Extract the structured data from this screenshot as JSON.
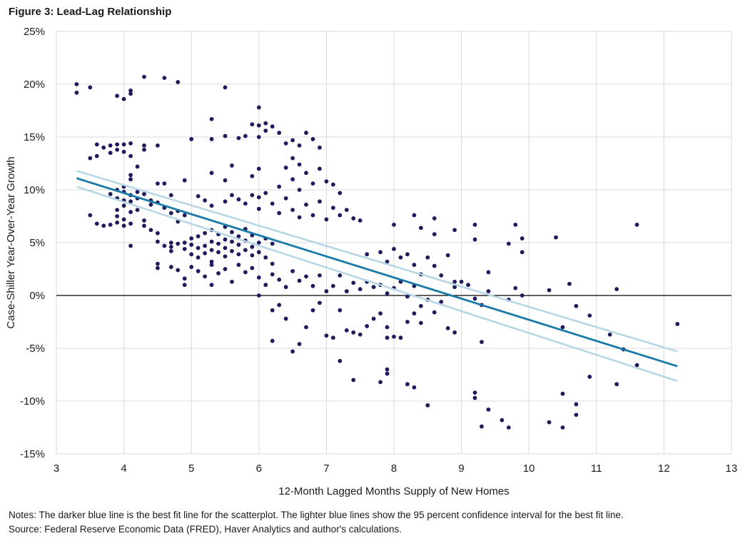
{
  "title": "Figure 3: Lead-Lag Relationship",
  "notes": {
    "line1": "Notes: The darker blue line is the best fit line for the scatterplot. The lighter blue lines show the 95 percent confidence interval for the best fit line.",
    "line2": "Source: Federal Reserve Economic Data (FRED), Haver Analytics and author's calculations."
  },
  "chart_data": {
    "type": "scatter",
    "title": "Figure 3: Lead-Lag Relationship",
    "xlabel": "12-Month Lagged Months Supply of New Homes",
    "ylabel": "Case-Shiller Year-Over-Year Growth",
    "xlim": [
      3,
      13
    ],
    "ylim": [
      -15,
      25
    ],
    "x_ticks": [
      3,
      4,
      5,
      6,
      7,
      8,
      9,
      10,
      11,
      12,
      13
    ],
    "y_ticks": [
      -15,
      -10,
      -5,
      0,
      5,
      10,
      15,
      20,
      25
    ],
    "y_tick_labels": [
      "-15%",
      "-10%",
      "-5%",
      "0%",
      "5%",
      "10%",
      "15%",
      "20%",
      "25%"
    ],
    "grid": true,
    "colors": {
      "points": "#1f1a5c",
      "fit": "#1a7aa8",
      "ci": "#b7d7e6",
      "grid": "#d9d9d9",
      "zero": "#000000"
    },
    "fit_line": {
      "x": [
        3.3,
        12.2
      ],
      "y": [
        11.1,
        -6.7
      ]
    },
    "ci_upper": {
      "x": [
        3.3,
        12.2
      ],
      "y": [
        11.8,
        -5.3
      ]
    },
    "ci_lower": {
      "x": [
        3.3,
        12.2
      ],
      "y": [
        10.3,
        -8.1
      ]
    },
    "points": [
      [
        3.3,
        20.0
      ],
      [
        3.3,
        19.2
      ],
      [
        3.5,
        19.7
      ],
      [
        4.3,
        20.7
      ],
      [
        4.6,
        20.6
      ],
      [
        4.8,
        20.2
      ],
      [
        5.5,
        19.7
      ],
      [
        3.9,
        18.9
      ],
      [
        4.0,
        18.6
      ],
      [
        4.1,
        19.1
      ],
      [
        4.1,
        19.4
      ],
      [
        3.5,
        13.0
      ],
      [
        3.6,
        13.2
      ],
      [
        3.6,
        14.3
      ],
      [
        3.7,
        14.0
      ],
      [
        3.8,
        13.5
      ],
      [
        3.8,
        14.2
      ],
      [
        3.9,
        14.3
      ],
      [
        3.9,
        13.8
      ],
      [
        4.0,
        14.3
      ],
      [
        4.0,
        13.6
      ],
      [
        4.1,
        14.4
      ],
      [
        4.1,
        13.2
      ],
      [
        4.3,
        14.2
      ],
      [
        4.3,
        13.8
      ],
      [
        4.5,
        14.2
      ],
      [
        4.2,
        12.2
      ],
      [
        4.1,
        11.4
      ],
      [
        4.1,
        11.0
      ],
      [
        4.0,
        10.3
      ],
      [
        3.9,
        10.0
      ],
      [
        4.5,
        10.6
      ],
      [
        4.6,
        10.6
      ],
      [
        4.7,
        9.5
      ],
      [
        4.9,
        10.9
      ],
      [
        3.5,
        7.6
      ],
      [
        3.6,
        6.8
      ],
      [
        3.7,
        6.6
      ],
      [
        3.8,
        6.7
      ],
      [
        3.9,
        6.9
      ],
      [
        3.9,
        7.5
      ],
      [
        3.9,
        8.1
      ],
      [
        4.0,
        8.5
      ],
      [
        4.0,
        7.2
      ],
      [
        4.0,
        6.6
      ],
      [
        4.1,
        6.8
      ],
      [
        4.1,
        7.9
      ],
      [
        4.1,
        8.9
      ],
      [
        4.2,
        9.2
      ],
      [
        4.2,
        8.1
      ],
      [
        4.3,
        7.1
      ],
      [
        4.3,
        6.6
      ],
      [
        4.4,
        6.2
      ],
      [
        4.5,
        5.9
      ],
      [
        4.5,
        5.1
      ],
      [
        4.6,
        4.7
      ],
      [
        4.1,
        4.7
      ],
      [
        4.5,
        3.0
      ],
      [
        4.5,
        2.6
      ],
      [
        3.8,
        9.6
      ],
      [
        3.9,
        9.2
      ],
      [
        4.0,
        9.0
      ],
      [
        4.0,
        9.8
      ],
      [
        4.1,
        9.5
      ],
      [
        4.2,
        9.8
      ],
      [
        4.3,
        9.6
      ],
      [
        4.4,
        9.0
      ],
      [
        4.4,
        8.6
      ],
      [
        4.5,
        8.8
      ],
      [
        4.6,
        8.3
      ],
      [
        4.7,
        7.8
      ],
      [
        4.8,
        8.0
      ],
      [
        4.9,
        7.6
      ],
      [
        4.8,
        7.0
      ],
      [
        4.7,
        5.0
      ],
      [
        4.7,
        4.6
      ],
      [
        4.7,
        4.2
      ],
      [
        4.8,
        4.9
      ],
      [
        4.9,
        5.0
      ],
      [
        4.9,
        4.4
      ],
      [
        5.0,
        5.4
      ],
      [
        5.0,
        4.8
      ],
      [
        5.0,
        3.9
      ],
      [
        5.1,
        5.6
      ],
      [
        5.1,
        4.5
      ],
      [
        5.1,
        3.6
      ],
      [
        5.2,
        5.9
      ],
      [
        5.2,
        4.7
      ],
      [
        5.2,
        4.0
      ],
      [
        5.3,
        6.2
      ],
      [
        5.3,
        5.1
      ],
      [
        5.3,
        4.3
      ],
      [
        5.3,
        3.2
      ],
      [
        5.4,
        5.8
      ],
      [
        5.4,
        4.9
      ],
      [
        5.4,
        4.1
      ],
      [
        5.5,
        6.5
      ],
      [
        5.5,
        5.3
      ],
      [
        5.5,
        4.5
      ],
      [
        5.5,
        3.7
      ],
      [
        5.6,
        6.0
      ],
      [
        5.6,
        5.1
      ],
      [
        5.6,
        4.2
      ],
      [
        5.7,
        5.6
      ],
      [
        5.7,
        4.8
      ],
      [
        5.7,
        3.9
      ],
      [
        5.8,
        6.3
      ],
      [
        5.8,
        5.2
      ],
      [
        5.8,
        4.3
      ],
      [
        5.9,
        5.7
      ],
      [
        5.9,
        4.6
      ],
      [
        5.9,
        3.8
      ],
      [
        6.0,
        5.0
      ],
      [
        6.0,
        4.1
      ],
      [
        6.1,
        5.4
      ],
      [
        6.1,
        3.6
      ],
      [
        6.2,
        4.9
      ],
      [
        6.2,
        3.0
      ],
      [
        4.7,
        2.7
      ],
      [
        4.8,
        2.4
      ],
      [
        4.9,
        1.0
      ],
      [
        4.9,
        1.6
      ],
      [
        5.0,
        2.7
      ],
      [
        5.1,
        2.3
      ],
      [
        5.2,
        1.8
      ],
      [
        5.3,
        1.0
      ],
      [
        5.3,
        2.9
      ],
      [
        5.4,
        2.1
      ],
      [
        5.5,
        2.5
      ],
      [
        5.6,
        1.3
      ],
      [
        5.7,
        2.9
      ],
      [
        5.8,
        2.2
      ],
      [
        5.9,
        2.6
      ],
      [
        6.0,
        1.7
      ],
      [
        6.1,
        1.0
      ],
      [
        6.2,
        2.0
      ],
      [
        6.3,
        1.5
      ],
      [
        6.4,
        0.8
      ],
      [
        6.5,
        2.3
      ],
      [
        6.6,
        1.4
      ],
      [
        6.7,
        1.8
      ],
      [
        6.8,
        0.9
      ],
      [
        6.9,
        1.9
      ],
      [
        5.1,
        9.4
      ],
      [
        5.2,
        9.0
      ],
      [
        5.3,
        8.5
      ],
      [
        5.5,
        8.9
      ],
      [
        5.6,
        9.5
      ],
      [
        5.7,
        9.1
      ],
      [
        5.8,
        8.7
      ],
      [
        5.9,
        9.5
      ],
      [
        6.0,
        9.3
      ],
      [
        6.0,
        8.2
      ],
      [
        6.1,
        9.7
      ],
      [
        6.2,
        8.7
      ],
      [
        6.3,
        7.8
      ],
      [
        6.4,
        9.2
      ],
      [
        6.5,
        8.1
      ],
      [
        6.6,
        7.4
      ],
      [
        6.7,
        8.6
      ],
      [
        6.8,
        7.6
      ],
      [
        6.9,
        8.9
      ],
      [
        7.0,
        7.2
      ],
      [
        7.1,
        8.3
      ],
      [
        7.2,
        7.6
      ],
      [
        7.3,
        8.1
      ],
      [
        7.4,
        7.3
      ],
      [
        7.5,
        7.1
      ],
      [
        5.0,
        14.8
      ],
      [
        5.3,
        16.7
      ],
      [
        5.3,
        14.8
      ],
      [
        5.5,
        15.1
      ],
      [
        5.7,
        14.9
      ],
      [
        5.8,
        15.1
      ],
      [
        5.9,
        16.2
      ],
      [
        6.0,
        16.1
      ],
      [
        6.0,
        15.0
      ],
      [
        6.0,
        17.8
      ],
      [
        6.1,
        16.3
      ],
      [
        6.1,
        15.6
      ],
      [
        6.2,
        16.0
      ],
      [
        6.3,
        15.4
      ],
      [
        6.4,
        14.4
      ],
      [
        6.5,
        14.7
      ],
      [
        6.6,
        14.2
      ],
      [
        6.7,
        15.4
      ],
      [
        6.8,
        14.8
      ],
      [
        6.9,
        14.0
      ],
      [
        6.5,
        13.0
      ],
      [
        6.4,
        12.1
      ],
      [
        6.6,
        12.4
      ],
      [
        6.7,
        11.6
      ],
      [
        6.9,
        12.0
      ],
      [
        7.0,
        10.8
      ],
      [
        6.5,
        11.0
      ],
      [
        6.3,
        10.3
      ],
      [
        6.6,
        10.0
      ],
      [
        6.8,
        10.6
      ],
      [
        7.1,
        10.5
      ],
      [
        7.2,
        9.7
      ],
      [
        5.6,
        12.3
      ],
      [
        5.3,
        11.6
      ],
      [
        5.5,
        10.9
      ],
      [
        5.9,
        11.3
      ],
      [
        6.0,
        12.0
      ],
      [
        6.0,
        0.0
      ],
      [
        6.2,
        -1.4
      ],
      [
        6.3,
        -0.9
      ],
      [
        6.4,
        -2.2
      ],
      [
        6.2,
        -4.3
      ],
      [
        6.5,
        -5.3
      ],
      [
        6.6,
        -4.6
      ],
      [
        6.7,
        -3.0
      ],
      [
        6.8,
        -1.4
      ],
      [
        6.9,
        -0.7
      ],
      [
        7.0,
        -3.8
      ],
      [
        7.1,
        -4.0
      ],
      [
        7.2,
        -1.4
      ],
      [
        7.3,
        -3.3
      ],
      [
        7.4,
        -3.5
      ],
      [
        7.5,
        -3.7
      ],
      [
        7.6,
        -2.9
      ],
      [
        7.7,
        -2.2
      ],
      [
        7.8,
        -1.7
      ],
      [
        7.9,
        -3.0
      ],
      [
        7.9,
        -4.0
      ],
      [
        8.0,
        -3.9
      ],
      [
        8.1,
        -4.0
      ],
      [
        8.2,
        -2.5
      ],
      [
        8.3,
        -1.7
      ],
      [
        8.4,
        -2.6
      ],
      [
        7.2,
        -6.2
      ],
      [
        7.4,
        -8.0
      ],
      [
        7.8,
        -8.2
      ],
      [
        7.9,
        -7.4
      ],
      [
        7.9,
        -7.0
      ],
      [
        8.2,
        -8.4
      ],
      [
        8.3,
        -8.7
      ],
      [
        8.5,
        -10.4
      ],
      [
        7.0,
        0.4
      ],
      [
        7.1,
        0.9
      ],
      [
        7.2,
        1.9
      ],
      [
        7.3,
        0.4
      ],
      [
        7.4,
        1.2
      ],
      [
        7.5,
        0.6
      ],
      [
        7.6,
        1.3
      ],
      [
        7.7,
        0.8
      ],
      [
        7.8,
        1.0
      ],
      [
        7.9,
        0.2
      ],
      [
        8.0,
        0.7
      ],
      [
        8.1,
        1.3
      ],
      [
        8.2,
        -0.1
      ],
      [
        8.3,
        0.9
      ],
      [
        8.4,
        -1.0
      ],
      [
        8.5,
        -0.4
      ],
      [
        8.6,
        -1.6
      ],
      [
        8.7,
        -0.6
      ],
      [
        8.8,
        -3.1
      ],
      [
        8.9,
        -3.5
      ],
      [
        8.9,
        0.8
      ],
      [
        9.0,
        1.3
      ],
      [
        7.6,
        3.9
      ],
      [
        7.8,
        4.1
      ],
      [
        7.9,
        3.2
      ],
      [
        8.0,
        4.4
      ],
      [
        8.1,
        3.6
      ],
      [
        8.2,
        3.9
      ],
      [
        8.3,
        2.9
      ],
      [
        8.4,
        2.0
      ],
      [
        8.5,
        3.6
      ],
      [
        8.6,
        2.8
      ],
      [
        8.7,
        1.9
      ],
      [
        8.8,
        3.8
      ],
      [
        8.9,
        1.3
      ],
      [
        8.0,
        6.7
      ],
      [
        8.3,
        7.6
      ],
      [
        8.4,
        6.4
      ],
      [
        8.6,
        7.3
      ],
      [
        8.6,
        5.8
      ],
      [
        8.9,
        6.2
      ],
      [
        9.2,
        6.7
      ],
      [
        9.2,
        5.3
      ],
      [
        9.7,
        4.9
      ],
      [
        9.8,
        6.7
      ],
      [
        9.9,
        5.4
      ],
      [
        9.9,
        4.1
      ],
      [
        9.1,
        1.0
      ],
      [
        9.2,
        -0.3
      ],
      [
        9.3,
        -0.9
      ],
      [
        9.3,
        -4.4
      ],
      [
        9.4,
        0.4
      ],
      [
        9.4,
        2.2
      ],
      [
        9.7,
        -0.4
      ],
      [
        9.8,
        0.7
      ],
      [
        9.9,
        0.0
      ],
      [
        10.3,
        0.5
      ],
      [
        10.5,
        -3.0
      ],
      [
        10.6,
        1.1
      ],
      [
        10.7,
        -1.0
      ],
      [
        10.9,
        -1.9
      ],
      [
        10.4,
        5.5
      ],
      [
        9.2,
        -9.2
      ],
      [
        9.2,
        -9.7
      ],
      [
        9.3,
        -12.4
      ],
      [
        9.4,
        -10.8
      ],
      [
        9.6,
        -11.8
      ],
      [
        9.7,
        -12.5
      ],
      [
        10.3,
        -12.0
      ],
      [
        10.5,
        -12.5
      ],
      [
        10.5,
        -9.3
      ],
      [
        10.7,
        -10.3
      ],
      [
        10.7,
        -11.3
      ],
      [
        10.9,
        -7.7
      ],
      [
        11.2,
        -3.7
      ],
      [
        11.3,
        0.6
      ],
      [
        11.3,
        -8.4
      ],
      [
        11.4,
        -5.1
      ],
      [
        11.6,
        -6.6
      ],
      [
        11.6,
        6.7
      ],
      [
        12.2,
        -2.7
      ]
    ]
  }
}
